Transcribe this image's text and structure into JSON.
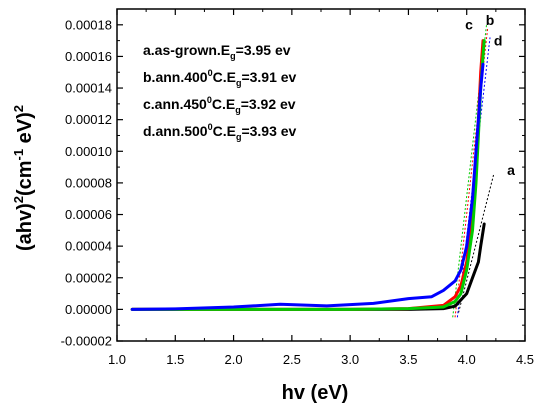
{
  "chart_data": {
    "type": "line",
    "xlabel": "hv (eV)",
    "ylabel": {
      "base": "(ahv)",
      "sup1": "2",
      "unit_open": "(cm",
      "sup2": "-1",
      "unit_mid": " eV)",
      "sup3": "2"
    },
    "xlim": [
      1.0,
      4.5
    ],
    "ylim": [
      -2e-05,
      0.00019
    ],
    "xticks": [
      1.0,
      1.5,
      2.0,
      2.5,
      3.0,
      3.5,
      4.0,
      4.5
    ],
    "xtick_labels": [
      "1.0",
      "1.5",
      "2.0",
      "2.5",
      "3.0",
      "3.5",
      "4.0",
      "4.5"
    ],
    "yticks": [
      -2e-05,
      0.0,
      2e-05,
      4e-05,
      6e-05,
      8e-05,
      0.0001,
      0.00012,
      0.00014,
      0.00016,
      0.00018
    ],
    "ytick_labels": [
      "-0.00002",
      "0.00000",
      "0.00002",
      "0.00004",
      "0.00006",
      "0.00008",
      "0.00010",
      "0.00012",
      "0.00014",
      "0.00016",
      "0.00018"
    ],
    "grid": false,
    "series": [
      {
        "id": "a",
        "color": "#000000",
        "x": [
          1.13,
          2.0,
          3.0,
          3.5,
          3.8,
          3.9,
          4.0,
          4.05,
          4.1,
          4.12,
          4.15
        ],
        "y": [
          0.0,
          0.0,
          0.0,
          0.0,
          5e-07,
          2e-06,
          1e-05,
          2e-05,
          3e-05,
          4e-05,
          5.4e-05
        ]
      },
      {
        "id": "c",
        "color": "#ff0000",
        "x": [
          1.13,
          2.0,
          3.0,
          3.5,
          3.8,
          3.9,
          3.95,
          4.0,
          4.05,
          4.08,
          4.1,
          4.12,
          4.14
        ],
        "y": [
          0.0,
          0.0,
          0.0,
          5e-07,
          2.5e-06,
          8e-06,
          1.5e-05,
          3e-05,
          6e-05,
          9e-05,
          0.00012,
          0.00015,
          0.00017
        ]
      },
      {
        "id": "b",
        "color": "#00cc00",
        "x": [
          1.13,
          2.0,
          3.0,
          3.5,
          3.8,
          3.9,
          3.95,
          4.0,
          4.05,
          4.08,
          4.1,
          4.12,
          4.14,
          4.15
        ],
        "y": [
          0.0,
          0.0,
          0.0,
          5e-07,
          1.5e-06,
          5e-06,
          1e-05,
          2.5e-05,
          5e-05,
          8e-05,
          0.00011,
          0.00014,
          0.00016,
          0.00017
        ]
      },
      {
        "id": "d",
        "color": "#0000ff",
        "x": [
          1.13,
          1.5,
          2.0,
          2.4,
          2.8,
          3.2,
          3.5,
          3.7,
          3.8,
          3.9,
          3.95,
          4.0,
          4.05,
          4.08,
          4.1,
          4.12,
          4.14
        ],
        "y": [
          0.0,
          3e-07,
          1.5e-06,
          3.2e-06,
          2.2e-06,
          3.8e-06,
          6.8e-06,
          8e-06,
          1.2e-05,
          1.8e-05,
          2.5e-05,
          4e-05,
          7e-05,
          0.0001,
          0.00012,
          0.00014,
          0.000155
        ]
      }
    ],
    "tangents": [
      {
        "id": "a",
        "color": "#000000",
        "from": [
          3.93,
          -2e-06
        ],
        "to": [
          4.23,
          8.5e-05
        ]
      },
      {
        "id": "c",
        "color": "#ff0000",
        "from": [
          3.9,
          -5e-06
        ],
        "to": [
          4.18,
          0.000178
        ]
      },
      {
        "id": "b",
        "color": "#00cc00",
        "from": [
          3.88,
          -5e-06
        ],
        "to": [
          4.17,
          0.00018
        ]
      },
      {
        "id": "d",
        "color": "#0000ff",
        "from": [
          3.92,
          -5e-06
        ],
        "to": [
          4.2,
          0.000172
        ]
      }
    ],
    "curve_labels": [
      {
        "text": "c",
        "x": 4.02,
        "y": 0.000177
      },
      {
        "text": "b",
        "x": 4.2,
        "y": 0.00018
      },
      {
        "text": "d",
        "x": 4.27,
        "y": 0.000167
      },
      {
        "text": "a",
        "x": 4.38,
        "y": 8.5e-05
      }
    ],
    "legend": [
      {
        "label": "a.as-grown.E",
        "sub": "g",
        "value": "=3.95 ev"
      },
      {
        "label": "b.ann.400",
        "sup": "0",
        "mid": "C.E",
        "sub": "g",
        "value": "=3.91 ev"
      },
      {
        "label": "c.ann.450",
        "sup": "0",
        "mid": "C.E",
        "sub": "g",
        "value": "=3.92 ev"
      },
      {
        "label": "d.ann.500",
        "sup": "0",
        "mid": "C.E",
        "sub": "g",
        "value": "=3.93 ev"
      }
    ],
    "legend_placement": "top-left"
  }
}
